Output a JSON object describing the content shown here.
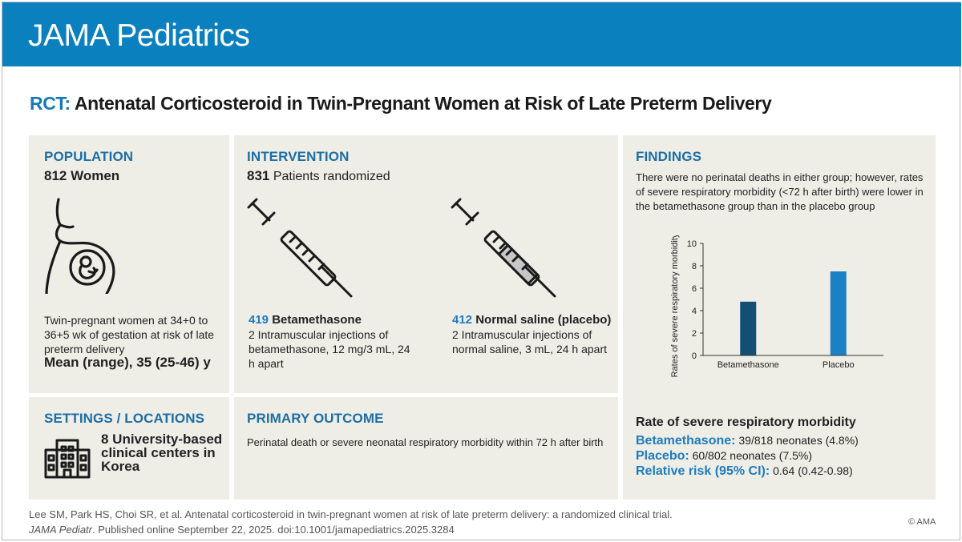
{
  "header": {
    "journal": "JAMA Pediatrics"
  },
  "headline": {
    "tag": "RCT:",
    "title": "Antenatal Corticosteroid in Twin-Pregnant Women at Risk of Late Preterm Delivery"
  },
  "population": {
    "title": "POPULATION",
    "count": "812 Women",
    "icon": "pregnant-woman-icon",
    "desc": "Twin-pregnant women at 34+0 to 36+5 wk of gestation at risk of late preterm delivery",
    "age": "Mean (range), 35 (25-46) y"
  },
  "intervention": {
    "title": "INTERVENTION",
    "randomized_num": "831",
    "randomized_text": "Patients randomized",
    "arms": [
      {
        "n": "419",
        "name": "Betamethasone",
        "desc": "2 Intramuscular injections of betamethasone, 12 mg/3 mL, 24 h apart",
        "icon": "syringe-icon"
      },
      {
        "n": "412",
        "name": "Normal saline (placebo)",
        "desc": "2 Intramuscular injections of normal saline, 3 mL, 24 h apart",
        "icon": "syringe-icon"
      }
    ]
  },
  "findings": {
    "title": "FINDINGS",
    "text": "There were no perinatal deaths in either group; however, rates of severe respiratory morbidity (<72 h after birth) were lower in the betamethasone group than in the placebo group",
    "rate_title": "Rate of severe respiratory morbidity",
    "results": [
      {
        "label": "Betamethasone:",
        "value": "39/818 neonates (4.8%)"
      },
      {
        "label": "Placebo:",
        "value": "60/802 neonates (7.5%)"
      },
      {
        "label": "Relative risk (95% CI):",
        "value": "0.64 (0.42-0.98)"
      }
    ]
  },
  "settings": {
    "title": "SETTINGS / LOCATIONS",
    "icon": "hospital-building-icon",
    "text": "8 University-based clinical centers in Korea"
  },
  "primary_outcome": {
    "title": "PRIMARY OUTCOME",
    "text": "Perinatal death or severe neonatal respiratory morbidity within 72 h after birth"
  },
  "chart_data": {
    "type": "bar",
    "categories": [
      "Betamethasone",
      "Placebo"
    ],
    "values": [
      4.8,
      7.5
    ],
    "colors": [
      "#134e73",
      "#1a82c4"
    ],
    "ylabel": "Rates of severe respiratory morbidity, %",
    "ylim": [
      0,
      10
    ],
    "yticks": [
      0,
      2,
      4,
      6,
      8,
      10
    ],
    "grid": false
  },
  "footer": {
    "citation": "Lee SM, Park HS, Choi SR, et al. Antenatal corticosteroid in twin-pregnant women at risk of late preterm delivery: a randomized clinical trial.",
    "journal_abbr": "JAMA Pediatr",
    "published": ". Published online September 22, 2025. doi:10.1001/jamapediatrics.2025.3284",
    "copyright": "© AMA"
  }
}
